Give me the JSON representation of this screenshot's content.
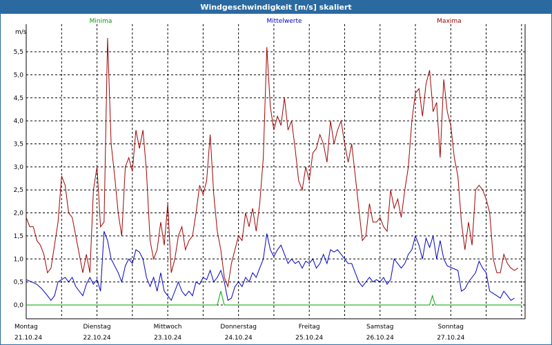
{
  "chart_data": {
    "type": "line",
    "title": "Windgeschwindigkeit [m/s] skaliert",
    "ylabel": "m/s",
    "ylim": [
      -0.3,
      6.1
    ],
    "yticks": [
      "0,0",
      "0,5",
      "1,0",
      "1,5",
      "2,0",
      "2,5",
      "3,0",
      "3,5",
      "4,0",
      "4,5",
      "5,0",
      "5,5"
    ],
    "ytick_values": [
      0,
      0.5,
      1.0,
      1.5,
      2.0,
      2.5,
      3.0,
      3.5,
      4.0,
      4.5,
      5.0,
      5.5
    ],
    "x_range_days": [
      0,
      7.05
    ],
    "day_labels": [
      {
        "day": "Montag",
        "date": "21.10.24"
      },
      {
        "day": "Dienstag",
        "date": "22.10.24"
      },
      {
        "day": "Mittwoch",
        "date": "23.10.24"
      },
      {
        "day": "Donnerstag",
        "date": "24.10.24"
      },
      {
        "day": "Freitag",
        "date": "25.10.24"
      },
      {
        "day": "Samstag",
        "date": "26.10.24"
      },
      {
        "day": "Sonntag",
        "date": "27.10.24"
      }
    ],
    "grid": true,
    "series": [
      {
        "name": "Minima",
        "color": "#00a000",
        "points": [
          [
            0.0,
            0.0
          ],
          [
            2.7,
            0.0
          ],
          [
            2.75,
            0.3
          ],
          [
            2.8,
            0.0
          ],
          [
            5.7,
            0.0
          ],
          [
            5.74,
            0.2
          ],
          [
            5.78,
            0.0
          ],
          [
            7.0,
            0.0
          ]
        ]
      },
      {
        "name": "Mittelwerte",
        "color": "#0000c0",
        "points": [
          [
            0.0,
            0.55
          ],
          [
            0.08,
            0.5
          ],
          [
            0.15,
            0.45
          ],
          [
            0.22,
            0.35
          ],
          [
            0.3,
            0.2
          ],
          [
            0.35,
            0.1
          ],
          [
            0.4,
            0.2
          ],
          [
            0.45,
            0.5
          ],
          [
            0.5,
            0.55
          ],
          [
            0.55,
            0.6
          ],
          [
            0.6,
            0.5
          ],
          [
            0.65,
            0.6
          ],
          [
            0.7,
            0.4
          ],
          [
            0.75,
            0.3
          ],
          [
            0.8,
            0.2
          ],
          [
            0.85,
            0.45
          ],
          [
            0.9,
            0.6
          ],
          [
            0.95,
            0.45
          ],
          [
            1.0,
            0.55
          ],
          [
            1.05,
            0.3
          ],
          [
            1.1,
            1.6
          ],
          [
            1.15,
            1.4
          ],
          [
            1.2,
            1.0
          ],
          [
            1.25,
            0.85
          ],
          [
            1.3,
            0.7
          ],
          [
            1.35,
            0.5
          ],
          [
            1.4,
            0.85
          ],
          [
            1.45,
            1.0
          ],
          [
            1.5,
            0.9
          ],
          [
            1.55,
            1.2
          ],
          [
            1.6,
            1.15
          ],
          [
            1.65,
            1.0
          ],
          [
            1.7,
            0.6
          ],
          [
            1.75,
            0.4
          ],
          [
            1.8,
            0.6
          ],
          [
            1.85,
            0.3
          ],
          [
            1.9,
            0.7
          ],
          [
            1.95,
            0.3
          ],
          [
            2.0,
            0.2
          ],
          [
            2.05,
            0.1
          ],
          [
            2.1,
            0.3
          ],
          [
            2.15,
            0.5
          ],
          [
            2.2,
            0.3
          ],
          [
            2.25,
            0.2
          ],
          [
            2.3,
            0.3
          ],
          [
            2.35,
            0.2
          ],
          [
            2.4,
            0.5
          ],
          [
            2.45,
            0.45
          ],
          [
            2.5,
            0.6
          ],
          [
            2.55,
            0.55
          ],
          [
            2.6,
            0.75
          ],
          [
            2.65,
            0.5
          ],
          [
            2.7,
            0.6
          ],
          [
            2.75,
            0.75
          ],
          [
            2.8,
            0.5
          ],
          [
            2.85,
            0.1
          ],
          [
            2.9,
            0.15
          ],
          [
            2.95,
            0.4
          ],
          [
            3.0,
            0.5
          ],
          [
            3.05,
            0.4
          ],
          [
            3.1,
            0.6
          ],
          [
            3.15,
            0.5
          ],
          [
            3.2,
            0.7
          ],
          [
            3.25,
            0.6
          ],
          [
            3.3,
            0.8
          ],
          [
            3.35,
            1.0
          ],
          [
            3.4,
            1.55
          ],
          [
            3.45,
            1.2
          ],
          [
            3.5,
            1.05
          ],
          [
            3.55,
            1.2
          ],
          [
            3.6,
            1.3
          ],
          [
            3.65,
            1.1
          ],
          [
            3.7,
            0.9
          ],
          [
            3.75,
            1.0
          ],
          [
            3.8,
            0.9
          ],
          [
            3.85,
            0.95
          ],
          [
            3.9,
            0.8
          ],
          [
            3.95,
            0.95
          ],
          [
            4.0,
            0.9
          ],
          [
            4.05,
            1.0
          ],
          [
            4.1,
            0.8
          ],
          [
            4.15,
            0.9
          ],
          [
            4.2,
            1.1
          ],
          [
            4.25,
            0.9
          ],
          [
            4.3,
            1.2
          ],
          [
            4.35,
            1.15
          ],
          [
            4.4,
            1.2
          ],
          [
            4.45,
            1.1
          ],
          [
            4.5,
            1.0
          ],
          [
            4.55,
            0.9
          ],
          [
            4.6,
            0.9
          ],
          [
            4.65,
            0.7
          ],
          [
            4.7,
            0.5
          ],
          [
            4.75,
            0.4
          ],
          [
            4.8,
            0.5
          ],
          [
            4.85,
            0.6
          ],
          [
            4.9,
            0.5
          ],
          [
            4.95,
            0.55
          ],
          [
            5.0,
            0.5
          ],
          [
            5.05,
            0.6
          ],
          [
            5.1,
            0.45
          ],
          [
            5.15,
            0.55
          ],
          [
            5.2,
            1.0
          ],
          [
            5.25,
            0.9
          ],
          [
            5.3,
            0.8
          ],
          [
            5.35,
            0.9
          ],
          [
            5.4,
            1.1
          ],
          [
            5.45,
            1.2
          ],
          [
            5.5,
            1.5
          ],
          [
            5.55,
            1.3
          ],
          [
            5.6,
            1.0
          ],
          [
            5.65,
            1.45
          ],
          [
            5.7,
            1.25
          ],
          [
            5.75,
            1.5
          ],
          [
            5.8,
            1.0
          ],
          [
            5.85,
            1.4
          ],
          [
            5.9,
            1.0
          ],
          [
            5.95,
            0.85
          ],
          [
            6.1,
            0.75
          ],
          [
            6.15,
            0.3
          ],
          [
            6.2,
            0.35
          ],
          [
            6.25,
            0.5
          ],
          [
            6.3,
            0.6
          ],
          [
            6.35,
            0.7
          ],
          [
            6.4,
            0.95
          ],
          [
            6.45,
            0.8
          ],
          [
            6.5,
            0.7
          ],
          [
            6.55,
            0.3
          ],
          [
            6.6,
            0.25
          ],
          [
            6.65,
            0.2
          ],
          [
            6.7,
            0.15
          ],
          [
            6.75,
            0.3
          ],
          [
            6.8,
            0.2
          ],
          [
            6.85,
            0.1
          ],
          [
            6.9,
            0.15
          ]
        ]
      },
      {
        "name": "Maxima",
        "color": "#a00000",
        "points": [
          [
            0.0,
            1.9
          ],
          [
            0.05,
            1.7
          ],
          [
            0.1,
            1.7
          ],
          [
            0.15,
            1.4
          ],
          [
            0.2,
            1.3
          ],
          [
            0.25,
            1.1
          ],
          [
            0.3,
            0.7
          ],
          [
            0.35,
            0.8
          ],
          [
            0.4,
            1.3
          ],
          [
            0.45,
            1.8
          ],
          [
            0.5,
            2.8
          ],
          [
            0.55,
            2.6
          ],
          [
            0.6,
            2.0
          ],
          [
            0.65,
            1.9
          ],
          [
            0.7,
            1.5
          ],
          [
            0.75,
            1.1
          ],
          [
            0.8,
            0.7
          ],
          [
            0.85,
            1.1
          ],
          [
            0.9,
            0.7
          ],
          [
            0.95,
            2.5
          ],
          [
            1.0,
            3.0
          ],
          [
            1.05,
            1.7
          ],
          [
            1.1,
            1.8
          ],
          [
            1.15,
            5.8
          ],
          [
            1.2,
            3.5
          ],
          [
            1.25,
            2.8
          ],
          [
            1.3,
            2.0
          ],
          [
            1.35,
            1.5
          ],
          [
            1.4,
            3.0
          ],
          [
            1.45,
            3.2
          ],
          [
            1.5,
            2.9
          ],
          [
            1.55,
            3.8
          ],
          [
            1.6,
            3.4
          ],
          [
            1.65,
            3.8
          ],
          [
            1.7,
            2.9
          ],
          [
            1.75,
            1.4
          ],
          [
            1.8,
            1.0
          ],
          [
            1.85,
            1.2
          ],
          [
            1.9,
            1.8
          ],
          [
            1.95,
            1.3
          ],
          [
            2.0,
            2.2
          ],
          [
            2.05,
            0.7
          ],
          [
            2.1,
            1.0
          ],
          [
            2.15,
            1.5
          ],
          [
            2.2,
            1.7
          ],
          [
            2.25,
            1.2
          ],
          [
            2.3,
            1.4
          ],
          [
            2.35,
            1.5
          ],
          [
            2.4,
            2.0
          ],
          [
            2.45,
            2.6
          ],
          [
            2.5,
            2.4
          ],
          [
            2.55,
            2.7
          ],
          [
            2.6,
            3.7
          ],
          [
            2.65,
            2.4
          ],
          [
            2.7,
            1.6
          ],
          [
            2.75,
            1.2
          ],
          [
            2.8,
            0.6
          ],
          [
            2.85,
            0.4
          ],
          [
            2.9,
            0.9
          ],
          [
            2.95,
            1.2
          ],
          [
            3.0,
            1.5
          ],
          [
            3.05,
            1.4
          ],
          [
            3.1,
            2.0
          ],
          [
            3.15,
            1.7
          ],
          [
            3.2,
            2.1
          ],
          [
            3.25,
            1.6
          ],
          [
            3.3,
            2.2
          ],
          [
            3.35,
            3.2
          ],
          [
            3.4,
            5.6
          ],
          [
            3.45,
            4.3
          ],
          [
            3.5,
            3.8
          ],
          [
            3.55,
            4.1
          ],
          [
            3.6,
            3.9
          ],
          [
            3.65,
            4.5
          ],
          [
            3.7,
            3.8
          ],
          [
            3.75,
            4.0
          ],
          [
            3.8,
            3.4
          ],
          [
            3.85,
            2.7
          ],
          [
            3.9,
            2.5
          ],
          [
            3.95,
            3.0
          ],
          [
            4.0,
            2.7
          ],
          [
            4.05,
            3.3
          ],
          [
            4.1,
            3.4
          ],
          [
            4.15,
            3.7
          ],
          [
            4.2,
            3.5
          ],
          [
            4.25,
            3.1
          ],
          [
            4.3,
            4.0
          ],
          [
            4.35,
            3.5
          ],
          [
            4.4,
            3.8
          ],
          [
            4.45,
            4.0
          ],
          [
            4.5,
            3.5
          ],
          [
            4.55,
            3.1
          ],
          [
            4.6,
            3.5
          ],
          [
            4.65,
            2.8
          ],
          [
            4.7,
            2.1
          ],
          [
            4.75,
            1.4
          ],
          [
            4.8,
            1.5
          ],
          [
            4.85,
            2.2
          ],
          [
            4.9,
            1.8
          ],
          [
            4.95,
            1.8
          ],
          [
            5.0,
            1.9
          ],
          [
            5.05,
            1.7
          ],
          [
            5.1,
            1.6
          ],
          [
            5.15,
            2.5
          ],
          [
            5.2,
            2.1
          ],
          [
            5.25,
            2.3
          ],
          [
            5.3,
            1.9
          ],
          [
            5.35,
            2.5
          ],
          [
            5.4,
            3.0
          ],
          [
            5.45,
            4.0
          ],
          [
            5.5,
            4.6
          ],
          [
            5.55,
            4.7
          ],
          [
            5.6,
            4.1
          ],
          [
            5.65,
            4.8
          ],
          [
            5.7,
            5.1
          ],
          [
            5.75,
            4.2
          ],
          [
            5.8,
            4.4
          ],
          [
            5.85,
            3.2
          ],
          [
            5.9,
            4.9
          ],
          [
            5.95,
            4.2
          ],
          [
            6.0,
            3.9
          ],
          [
            6.05,
            3.2
          ],
          [
            6.1,
            2.8
          ],
          [
            6.15,
            1.8
          ],
          [
            6.2,
            1.2
          ],
          [
            6.25,
            1.8
          ],
          [
            6.3,
            1.3
          ],
          [
            6.35,
            2.5
          ],
          [
            6.4,
            2.6
          ],
          [
            6.45,
            2.5
          ],
          [
            6.5,
            2.3
          ],
          [
            6.55,
            2.0
          ],
          [
            6.6,
            1.0
          ],
          [
            6.65,
            0.7
          ],
          [
            6.7,
            0.7
          ],
          [
            6.75,
            1.1
          ],
          [
            6.8,
            0.9
          ],
          [
            6.85,
            0.8
          ],
          [
            6.9,
            0.75
          ],
          [
            6.95,
            0.8
          ]
        ]
      }
    ]
  }
}
